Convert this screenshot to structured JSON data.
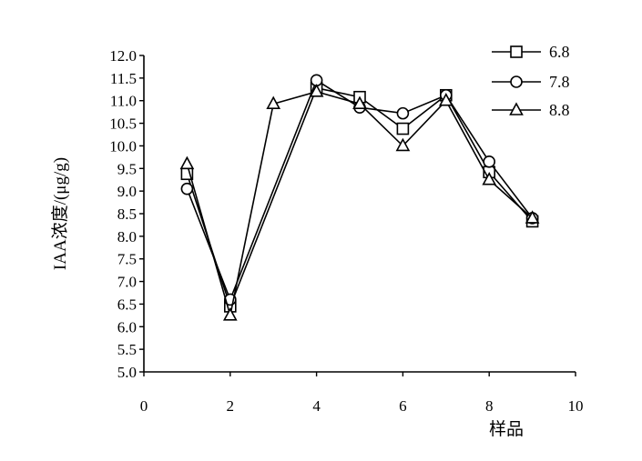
{
  "chart_data": {
    "type": "line",
    "title": "",
    "xlabel": "样品",
    "ylabel": "IAA浓度/(μg/g)",
    "xlim": [
      0,
      10
    ],
    "ylim": [
      5.0,
      12.0
    ],
    "x_ticks": [
      "0",
      "2",
      "4",
      "6",
      "8",
      "10"
    ],
    "x_tick_values": [
      0,
      2,
      4,
      6,
      8,
      10
    ],
    "y_ticks": [
      "5.0",
      "5.5",
      "6.0",
      "6.5",
      "7.0",
      "7.5",
      "8.0",
      "8.5",
      "9.0",
      "9.5",
      "10.0",
      "10.5",
      "11.0",
      "11.5",
      "12.0"
    ],
    "y_tick_values": [
      5.0,
      5.5,
      6.0,
      6.5,
      7.0,
      7.5,
      8.0,
      8.5,
      9.0,
      9.5,
      10.0,
      10.5,
      11.0,
      11.5,
      12.0
    ],
    "grid": false,
    "legend_position": "top-right",
    "line_color": "#000000",
    "series": [
      {
        "name": "6.8",
        "marker": "square",
        "x": [
          1,
          2,
          4,
          5,
          6,
          7,
          8,
          9
        ],
        "y": [
          9.38,
          6.45,
          11.28,
          11.08,
          10.38,
          11.12,
          9.42,
          8.33
        ]
      },
      {
        "name": "7.8",
        "marker": "circle",
        "x": [
          1,
          2,
          4,
          5,
          6,
          7,
          8,
          9
        ],
        "y": [
          9.05,
          6.6,
          11.45,
          10.85,
          10.72,
          11.12,
          9.65,
          8.4
        ]
      },
      {
        "name": "8.8",
        "marker": "triangle",
        "x": [
          1,
          2,
          3,
          4,
          5,
          6,
          7,
          8,
          9
        ],
        "y": [
          9.6,
          6.25,
          10.93,
          11.2,
          10.93,
          10.0,
          11.0,
          9.25,
          8.4
        ]
      }
    ]
  }
}
